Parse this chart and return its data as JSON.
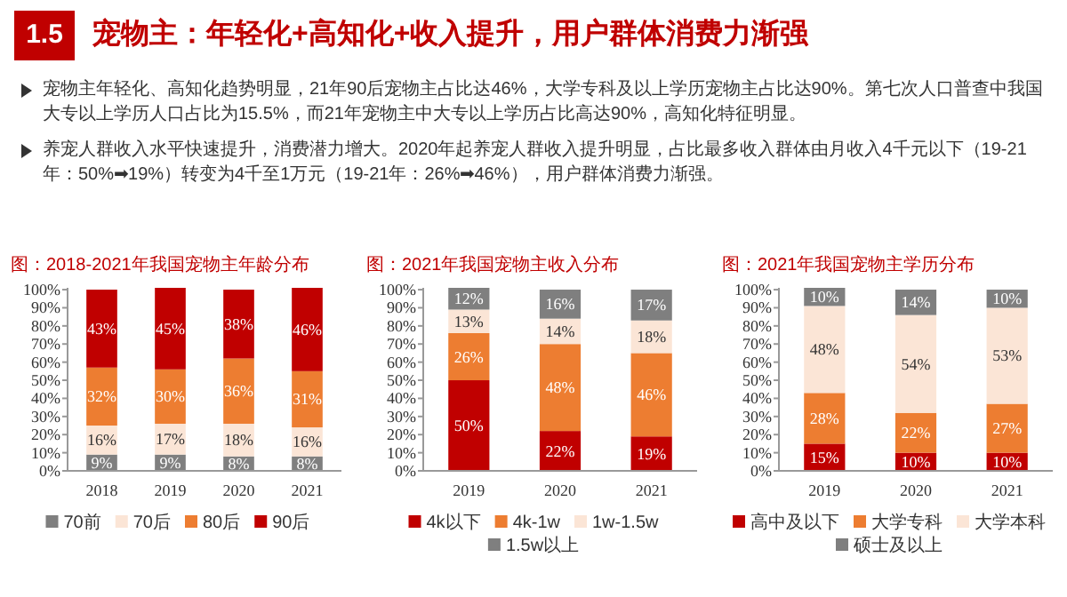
{
  "chart_data": [
    {
      "type": "other",
      "title": "宠物主：年轻化+高知化+收入提升，用户群体消费力渐强",
      "annotations": [
        "1.5",
        "宠物主年轻化、高知化趋势明显，21年90后宠物主占比达46%，大学专科及以上学历宠物主占比达90%。第七次人口普查中我国大专以上学历人口占比为15.5%，而21年宠物主中大专以上学历占比高达90%，高知化特征明显。",
        "养宠人群收入水平快速提升，消费潜力增大。2020年起养宠人群收入提升明显，占比最多收入群体由月收入4千元以下（19-21年：50%➡19%）转变为4千至1万元（19-21年：26%➡46%），用户群体消费力渐强。"
      ]
    },
    {
      "type": "bar",
      "stacked": true,
      "title": "图：2018-2021年我国宠物主年龄分布",
      "categories": [
        "2018",
        "2019",
        "2020",
        "2021"
      ],
      "series": [
        {
          "name": "70前",
          "color": "#7f7f7f",
          "values": [
            9,
            9,
            8,
            8
          ],
          "value_labels": [
            "9%",
            "9%",
            "8%",
            "8%"
          ]
        },
        {
          "name": "70后",
          "color": "#fbe5d6",
          "values": [
            16,
            17,
            18,
            16
          ],
          "value_labels": [
            "16%",
            "17%",
            "18%",
            "16%"
          ]
        },
        {
          "name": "80后",
          "color": "#ed7d31",
          "values": [
            32,
            30,
            36,
            31
          ],
          "value_labels": [
            "32%",
            "30%",
            "36%",
            "31%"
          ]
        },
        {
          "name": "90后",
          "color": "#c00000",
          "values": [
            43,
            45,
            38,
            46
          ],
          "value_labels": [
            "43%",
            "45%",
            "38%",
            "46%"
          ]
        }
      ],
      "ylim": [
        0,
        101
      ],
      "yticks": [
        {
          "value": 0,
          "label": "0%"
        },
        {
          "value": 10,
          "label": "10%"
        },
        {
          "value": 20,
          "label": "20%"
        },
        {
          "value": 30,
          "label": "30%"
        },
        {
          "value": 40,
          "label": "40%"
        },
        {
          "value": 50,
          "label": "50%"
        },
        {
          "value": 60,
          "label": "60%"
        },
        {
          "value": 70,
          "label": "70%"
        },
        {
          "value": 80,
          "label": "80%"
        },
        {
          "value": 90,
          "label": "90%"
        },
        {
          "value": 100,
          "label": "100%"
        }
      ],
      "legend": "bottom"
    },
    {
      "type": "bar",
      "stacked": true,
      "title": "图：2021年我国宠物主收入分布",
      "categories": [
        "2019",
        "2020",
        "2021"
      ],
      "series": [
        {
          "name": "4k以下",
          "color": "#c00000",
          "values": [
            50,
            22,
            19
          ],
          "value_labels": [
            "50%",
            "22%",
            "19%"
          ]
        },
        {
          "name": "4k-1w",
          "color": "#ed7d31",
          "values": [
            26,
            48,
            46
          ],
          "value_labels": [
            "26%",
            "48%",
            "46%"
          ]
        },
        {
          "name": "1w-1.5w",
          "color": "#fbe5d6",
          "values": [
            13,
            14,
            18
          ],
          "value_labels": [
            "13%",
            "14%",
            "18%"
          ]
        },
        {
          "name": "1.5w以上",
          "color": "#7f7f7f",
          "values": [
            12,
            16,
            17
          ],
          "value_labels": [
            "12%",
            "16%",
            "17%"
          ]
        }
      ],
      "ylim": [
        0,
        101
      ],
      "yticks": [
        {
          "value": 0,
          "label": "0%"
        },
        {
          "value": 10,
          "label": "10%"
        },
        {
          "value": 20,
          "label": "20%"
        },
        {
          "value": 30,
          "label": "30%"
        },
        {
          "value": 40,
          "label": "40%"
        },
        {
          "value": 50,
          "label": "50%"
        },
        {
          "value": 60,
          "label": "60%"
        },
        {
          "value": 70,
          "label": "70%"
        },
        {
          "value": 80,
          "label": "80%"
        },
        {
          "value": 90,
          "label": "90%"
        },
        {
          "value": 100,
          "label": "100%"
        }
      ],
      "legend": "bottom"
    },
    {
      "type": "bar",
      "stacked": true,
      "title": "图：2021年我国宠物主学历分布",
      "categories": [
        "2019",
        "2020",
        "2021"
      ],
      "series": [
        {
          "name": "高中及以下",
          "color": "#c00000",
          "values": [
            15,
            10,
            10
          ],
          "value_labels": [
            "15%",
            "10%",
            "10%"
          ]
        },
        {
          "name": "大学专科",
          "color": "#ed7d31",
          "values": [
            28,
            22,
            27
          ],
          "value_labels": [
            "28%",
            "22%",
            "27%"
          ]
        },
        {
          "name": "大学本科",
          "color": "#fbe5d6",
          "values": [
            48,
            54,
            53
          ],
          "value_labels": [
            "48%",
            "54%",
            "53%"
          ]
        },
        {
          "name": "硕士及以上",
          "color": "#7f7f7f",
          "values": [
            10,
            14,
            10
          ],
          "value_labels": [
            "10%",
            "14%",
            "10%"
          ]
        }
      ],
      "ylim": [
        0,
        101
      ],
      "yticks": [
        {
          "value": 0,
          "label": "0%"
        },
        {
          "value": 10,
          "label": "10%"
        },
        {
          "value": 20,
          "label": "20%"
        },
        {
          "value": 30,
          "label": "30%"
        },
        {
          "value": 40,
          "label": "40%"
        },
        {
          "value": 50,
          "label": "50%"
        },
        {
          "value": 60,
          "label": "60%"
        },
        {
          "value": 70,
          "label": "70%"
        },
        {
          "value": 80,
          "label": "80%"
        },
        {
          "value": 90,
          "label": "90%"
        },
        {
          "value": 100,
          "label": "100%"
        }
      ],
      "legend": "bottom"
    }
  ]
}
